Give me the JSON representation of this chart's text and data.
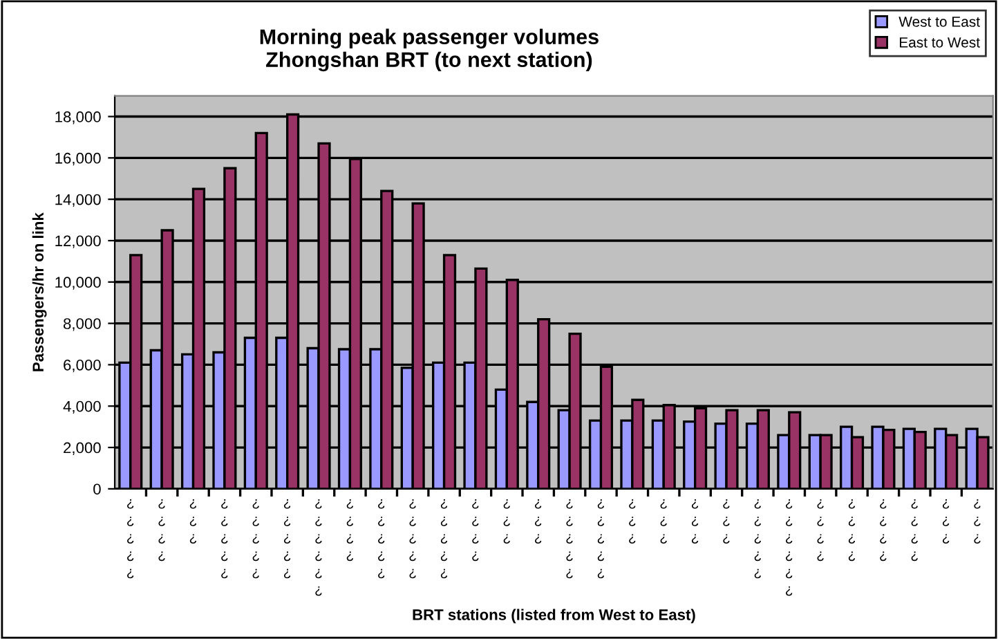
{
  "chart_data": {
    "type": "bar",
    "title": "Morning peak passenger volumes\nZhongshan BRT (to next station)",
    "xlabel": "BRT stations (listed from West to East)",
    "ylabel": "Passengers/hr on link",
    "categories": [
      "¿¿¿¿¿",
      "¿¿¿¿",
      "¿¿¿",
      "¿¿¿¿¿",
      "¿¿¿¿¿",
      "¿¿¿¿¿",
      "¿¿¿¿¿¿",
      "¿¿¿¿",
      "¿¿¿¿¿",
      "¿¿¿¿¿",
      "¿¿¿¿¿",
      "¿¿¿¿",
      "¿¿¿",
      "¿¿¿",
      "¿¿¿¿¿",
      "¿¿¿¿¿",
      "¿¿¿",
      "¿¿¿",
      "¿¿¿",
      "¿¿¿",
      "¿¿¿¿¿",
      "¿¿¿¿¿¿",
      "¿¿¿¿",
      "¿¿¿¿",
      "¿¿¿¿",
      "¿¿¿¿",
      "¿¿¿",
      "¿¿¿"
    ],
    "series": [
      {
        "name": "West to East",
        "color": "#9999ff",
        "values": [
          6100,
          6700,
          6500,
          6600,
          7300,
          7300,
          6800,
          6750,
          6750,
          5850,
          6100,
          6100,
          4800,
          4200,
          3800,
          3300,
          3300,
          3300,
          3250,
          3150,
          3150,
          2600,
          2600,
          3000,
          3000,
          2900,
          2900,
          2900
        ]
      },
      {
        "name": "East to West",
        "color": "#993366",
        "values": [
          11300,
          12500,
          14500,
          15500,
          17200,
          18100,
          16700,
          15950,
          14400,
          13800,
          11300,
          10650,
          10100,
          8200,
          7500,
          5900,
          4300,
          4050,
          3900,
          3800,
          3800,
          3700,
          2600,
          2500,
          2850,
          2750,
          2600,
          2500
        ]
      }
    ],
    "ylim": [
      0,
      19000
    ],
    "yticks": [
      0,
      {
        "value": 2000,
        "label": "2,000"
      },
      {
        "value": 4000,
        "label": "4,000"
      },
      {
        "value": 6000,
        "label": "6,000"
      },
      {
        "value": 8000,
        "label": "8,000"
      },
      {
        "value": 10000,
        "label": "10,000"
      },
      {
        "value": 12000,
        "label": "12,000"
      },
      {
        "value": 14000,
        "label": "14,000"
      },
      {
        "value": 16000,
        "label": "16,000"
      },
      {
        "value": 18000,
        "label": "18,000"
      }
    ],
    "grid": "y",
    "legend": "top right"
  }
}
